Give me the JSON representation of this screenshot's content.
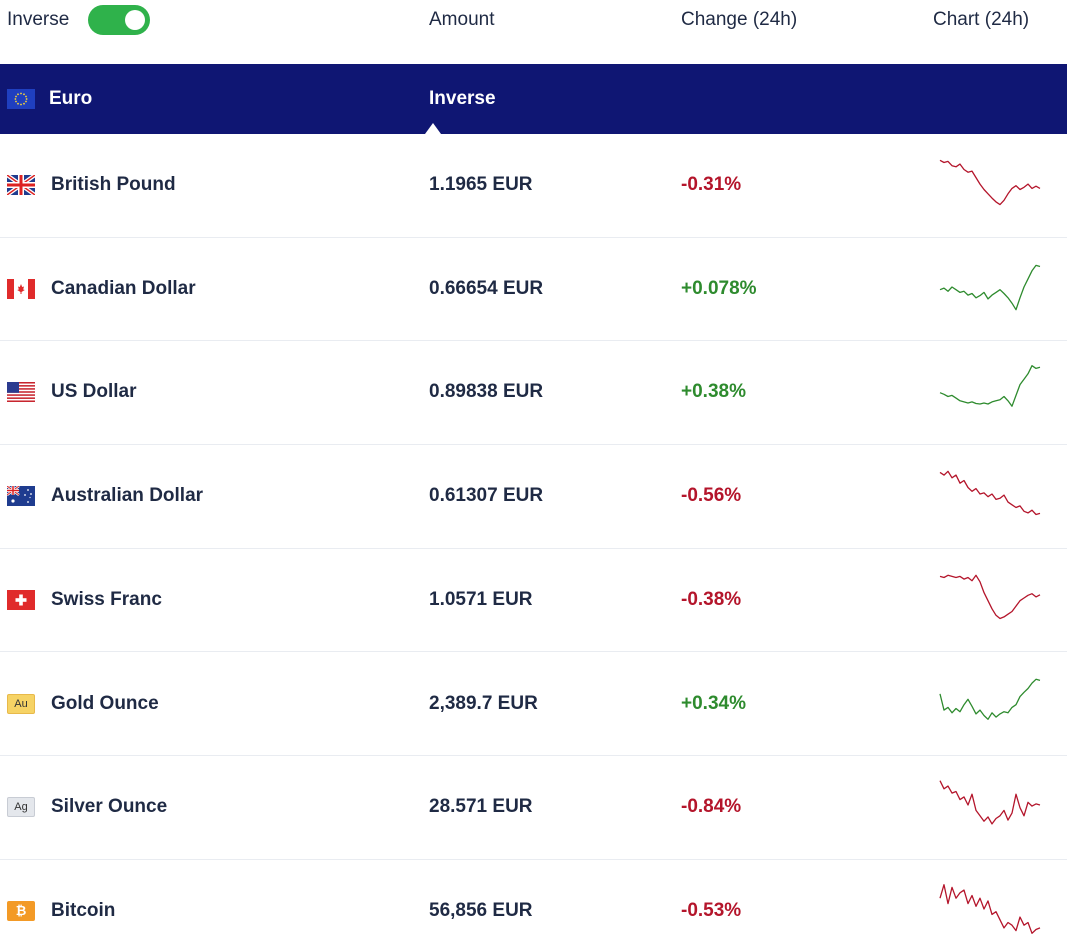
{
  "header": {
    "inverse_label": "Inverse",
    "inverse_on": true,
    "amount": "Amount",
    "change": "Change (24h)",
    "chart": "Chart (24h)"
  },
  "base": {
    "name": "Euro",
    "mode_label": "Inverse",
    "flag": "eu-flag-icon"
  },
  "colors": {
    "navy": "#0f1673",
    "toggle_green": "#2fb24b",
    "down_red": "#b4152b",
    "up_green": "#2e8b2e"
  },
  "rows": [
    {
      "name": "British Pound",
      "amount": "1.1965 EUR",
      "change": "-0.31%",
      "direction": "down",
      "flag": "uk-flag-icon",
      "spark": [
        0.08,
        0.12,
        0.1,
        0.18,
        0.2,
        0.15,
        0.25,
        0.3,
        0.28,
        0.4,
        0.52,
        0.62,
        0.7,
        0.78,
        0.85,
        0.9,
        0.82,
        0.7,
        0.6,
        0.55,
        0.62,
        0.58,
        0.52,
        0.6,
        0.56,
        0.6
      ]
    },
    {
      "name": "Canadian Dollar",
      "amount": "0.66654 EUR",
      "change": "+0.078%",
      "direction": "up",
      "flag": "ca-flag-icon",
      "spark": [
        0.55,
        0.52,
        0.58,
        0.5,
        0.55,
        0.6,
        0.58,
        0.65,
        0.62,
        0.7,
        0.66,
        0.6,
        0.72,
        0.65,
        0.6,
        0.55,
        0.62,
        0.7,
        0.8,
        0.92,
        0.7,
        0.5,
        0.35,
        0.2,
        0.1,
        0.12
      ]
    },
    {
      "name": "US Dollar",
      "amount": "0.89838 EUR",
      "change": "+0.38%",
      "direction": "up",
      "flag": "us-flag-icon",
      "spark": [
        0.55,
        0.58,
        0.62,
        0.6,
        0.65,
        0.7,
        0.72,
        0.74,
        0.72,
        0.75,
        0.76,
        0.74,
        0.76,
        0.72,
        0.7,
        0.68,
        0.62,
        0.7,
        0.8,
        0.6,
        0.4,
        0.3,
        0.2,
        0.05,
        0.1,
        0.08
      ]
    },
    {
      "name": "Australian Dollar",
      "amount": "0.61307 EUR",
      "change": "-0.56%",
      "direction": "down",
      "flag": "au-flag-icon",
      "spark": [
        0.1,
        0.15,
        0.08,
        0.2,
        0.15,
        0.3,
        0.25,
        0.38,
        0.45,
        0.4,
        0.5,
        0.48,
        0.55,
        0.5,
        0.6,
        0.58,
        0.52,
        0.65,
        0.7,
        0.75,
        0.72,
        0.82,
        0.85,
        0.8,
        0.88,
        0.86
      ]
    },
    {
      "name": "Swiss Franc",
      "amount": "1.0571 EUR",
      "change": "-0.38%",
      "direction": "down",
      "flag": "ch-flag-icon",
      "spark": [
        0.1,
        0.12,
        0.08,
        0.1,
        0.12,
        0.1,
        0.15,
        0.12,
        0.18,
        0.08,
        0.2,
        0.4,
        0.55,
        0.7,
        0.82,
        0.88,
        0.85,
        0.8,
        0.75,
        0.65,
        0.55,
        0.5,
        0.45,
        0.42,
        0.48,
        0.44
      ]
    },
    {
      "name": "Gold Ounce",
      "amount": "2,389.7 EUR",
      "change": "+0.34%",
      "direction": "up",
      "flag": "gold-icon",
      "badge": "Au",
      "spark": [
        0.35,
        0.65,
        0.6,
        0.7,
        0.62,
        0.68,
        0.55,
        0.45,
        0.58,
        0.72,
        0.65,
        0.75,
        0.82,
        0.7,
        0.78,
        0.72,
        0.68,
        0.7,
        0.6,
        0.55,
        0.4,
        0.32,
        0.25,
        0.15,
        0.08,
        0.1
      ]
    },
    {
      "name": "Silver Ounce",
      "amount": "28.571 EUR",
      "change": "-0.84%",
      "direction": "down",
      "flag": "silver-icon",
      "badge": "Ag",
      "spark": [
        0.05,
        0.2,
        0.15,
        0.28,
        0.25,
        0.4,
        0.35,
        0.5,
        0.3,
        0.6,
        0.7,
        0.8,
        0.72,
        0.85,
        0.75,
        0.7,
        0.6,
        0.78,
        0.65,
        0.3,
        0.55,
        0.7,
        0.45,
        0.52,
        0.48,
        0.5
      ]
    },
    {
      "name": "Bitcoin",
      "amount": "56,856 EUR",
      "change": "-0.53%",
      "direction": "down",
      "flag": "bitcoin-icon",
      "badge": "₿",
      "spark": [
        0.3,
        0.05,
        0.4,
        0.1,
        0.3,
        0.2,
        0.15,
        0.4,
        0.25,
        0.45,
        0.3,
        0.5,
        0.35,
        0.6,
        0.55,
        0.7,
        0.85,
        0.75,
        0.8,
        0.9,
        0.65,
        0.8,
        0.75,
        0.95,
        0.88,
        0.85
      ]
    }
  ]
}
